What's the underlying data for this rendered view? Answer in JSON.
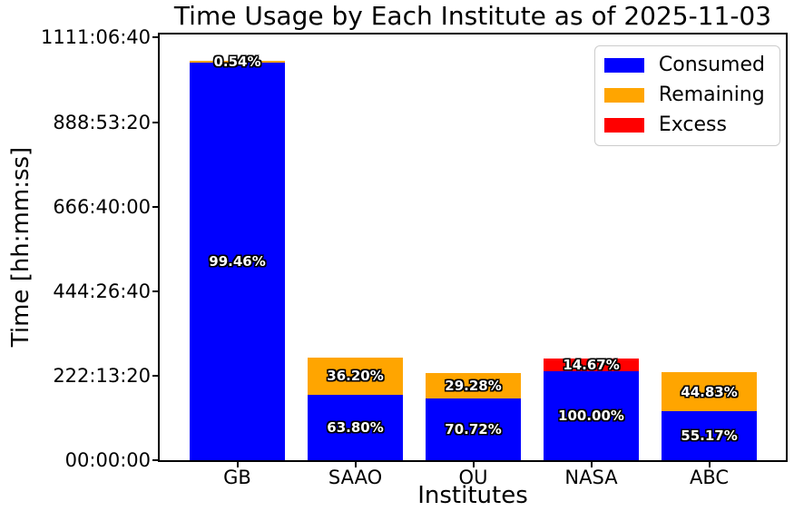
{
  "chart_data": {
    "type": "bar",
    "stacked": true,
    "title": "Time Usage by Each Institute as of 2025-11-03",
    "xlabel": "Institutes",
    "ylabel": "Time [hh:mm:ss]",
    "categories": [
      "GB",
      "SAAO",
      "OU",
      "NASA",
      "ABC"
    ],
    "series": [
      {
        "name": "Consumed",
        "color": "#0000ff",
        "values": [
          3759588,
          620136,
          585562,
          840000,
          460780
        ],
        "labels": [
          "99.46%",
          "63.80%",
          "70.72%",
          "100.00%",
          "55.17%"
        ]
      },
      {
        "name": "Remaining",
        "color": "#ffa500",
        "values": [
          20412,
          351864,
          242438,
          0,
          374420
        ],
        "labels": [
          "0.54%",
          "36.20%",
          "29.28%",
          "",
          "44.83%"
        ]
      },
      {
        "name": "Excess",
        "color": "#ff0000",
        "values": [
          0,
          0,
          0,
          123228,
          0
        ],
        "labels": [
          "",
          "",
          "",
          "14.67%",
          ""
        ]
      }
    ],
    "yticks": {
      "values": [
        0,
        800000,
        1600000,
        2400000,
        3200000,
        4000000
      ],
      "labels": [
        "00:00:00",
        "222:13:20",
        "444:26:40",
        "666:40:00",
        "888:53:20",
        "1111:06:40"
      ]
    },
    "ylim": [
      0,
      4030000
    ],
    "grid": false,
    "legend": {
      "position": "upper right",
      "entries": [
        {
          "label": "Consumed",
          "color": "#0000ff"
        },
        {
          "label": "Remaining",
          "color": "#ffa500"
        },
        {
          "label": "Excess",
          "color": "#ff0000"
        }
      ]
    }
  }
}
